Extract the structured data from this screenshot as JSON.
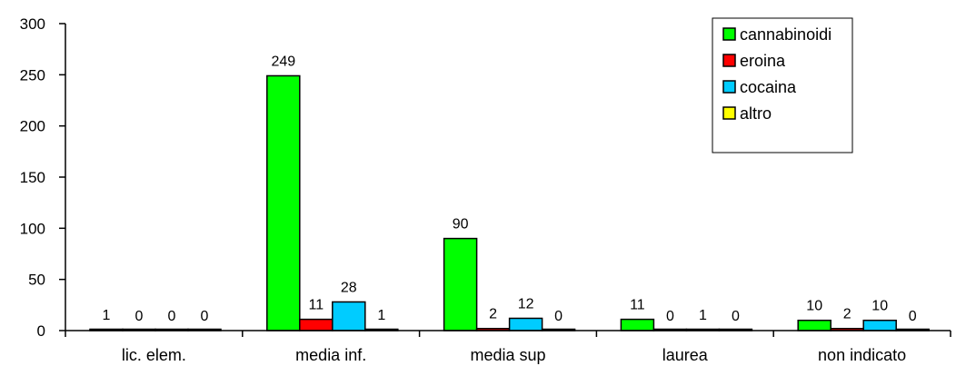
{
  "chart_data": {
    "type": "bar",
    "categories": [
      "lic. elem.",
      "media inf.",
      "media sup",
      "laurea",
      "non indicato"
    ],
    "series": [
      {
        "name": "cannabinoidi",
        "color": "#00ff00",
        "values": [
          1,
          249,
          90,
          11,
          10
        ]
      },
      {
        "name": "eroina",
        "color": "#ff0000",
        "values": [
          0,
          11,
          2,
          0,
          2
        ]
      },
      {
        "name": "cocaina",
        "color": "#00ccff",
        "values": [
          0,
          28,
          12,
          1,
          10
        ]
      },
      {
        "name": "altro",
        "color": "#ffff00",
        "values": [
          0,
          1,
          0,
          0,
          0
        ]
      }
    ],
    "y_ticks": [
      0,
      50,
      100,
      150,
      200,
      250,
      300
    ],
    "ylim": [
      0,
      300
    ],
    "title": "",
    "xlabel": "",
    "ylabel": "",
    "grid": false,
    "legend_position": "top-right",
    "data_labels": true
  }
}
